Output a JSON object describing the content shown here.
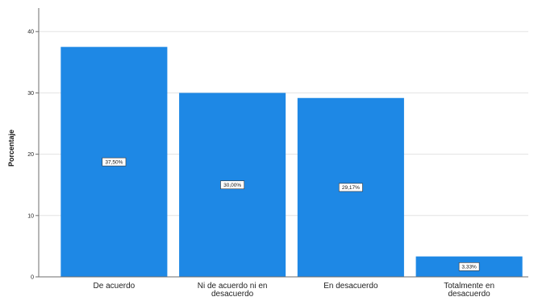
{
  "chart_data": {
    "type": "bar",
    "categories": [
      "De acuerdo",
      "Ni de acuerdo ni en desacuerdo",
      "En desacuerdo",
      "Totalmente en desacuerdo"
    ],
    "category_lines": [
      [
        "De acuerdo"
      ],
      [
        "Ni de acuerdo ni en",
        "desacuerdo"
      ],
      [
        "En desacuerdo"
      ],
      [
        "Totalmente en",
        "desacuerdo"
      ]
    ],
    "values": [
      37.5,
      30.0,
      29.17,
      3.33
    ],
    "data_labels": [
      "37,50%",
      "30,00%",
      "29,17%",
      "3,33%"
    ],
    "yticks": [
      0,
      10,
      20,
      30,
      40
    ],
    "ylabel": "Porcentaje",
    "xlabel": "",
    "title": "",
    "ylim": [
      0,
      42
    ],
    "grid": true,
    "colors": {
      "bar": "#1E88E5",
      "grid": "#E3E3E3",
      "axis": "#6E6E6E",
      "label_box": "#FFFFFF"
    }
  }
}
